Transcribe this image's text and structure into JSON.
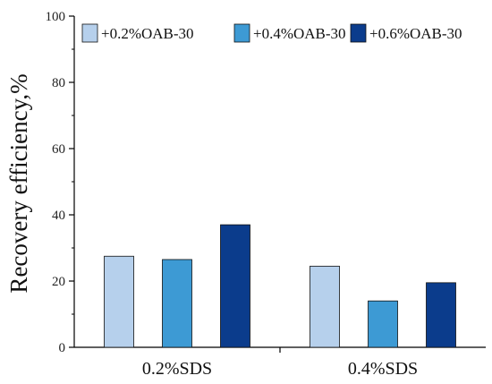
{
  "chart_data": {
    "type": "bar",
    "categories": [
      "0.2%SDS",
      "0.4%SDS"
    ],
    "series": [
      {
        "name": "+0.2%OAB-30",
        "values": [
          27.5,
          24.5
        ],
        "color": "#b6d0ec"
      },
      {
        "name": "+0.4%OAB-30",
        "values": [
          26.5,
          14.0
        ],
        "color": "#3d9ad4"
      },
      {
        "name": "+0.6%OAB-30",
        "values": [
          37.0,
          19.5
        ],
        "color": "#0b3c8c"
      }
    ],
    "ylabel": "Recovery efficiency,%",
    "xlabel": "",
    "ylim": [
      0,
      100
    ],
    "yticks": [
      "0",
      "20",
      "40",
      "60",
      "80",
      "100"
    ],
    "legend_position": "top",
    "grid": false
  }
}
